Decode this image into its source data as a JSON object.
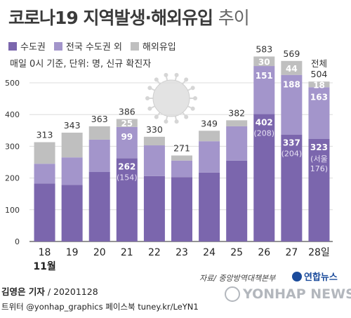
{
  "title_main": "코로나19 지역발생·해외유입",
  "title_suffix": "추이",
  "note": "매일 0시 기준, 단위: 명, 신규 확진자",
  "source": "자료/ 중앙방역대책본부",
  "byline_name": "김영은 기자",
  "byline_date": " / 20201128",
  "social": "트위터 @yonhap_graphics  페이스북 tuney.kr/LeYN1",
  "logo_text": "연합뉴스",
  "watermark_text": "YONHAP NEWS",
  "colors": {
    "domestic_capital": "#7b66ad",
    "domestic_other": "#a395cb",
    "imported": "#bfbfbf",
    "axis_text": "#333333"
  },
  "chart_data": {
    "type": "bar",
    "stacked": true,
    "categories": [
      "18",
      "19",
      "20",
      "21",
      "22",
      "23",
      "24",
      "25",
      "26",
      "27",
      "28일"
    ],
    "month_label": "11월",
    "series": [
      {
        "name": "수도권",
        "values": [
          183,
          178,
          219,
          262,
          206,
          203,
          217,
          255,
          402,
          337,
          323
        ]
      },
      {
        "name": "전국 수도권 외",
        "values": [
          62,
          87,
          102,
          99,
          97,
          52,
          99,
          108,
          151,
          188,
          163
        ]
      },
      {
        "name": "해외유입",
        "values": [
          68,
          78,
          42,
          25,
          27,
          16,
          33,
          19,
          30,
          44,
          18
        ]
      }
    ],
    "totals": [
      313,
      343,
      363,
      386,
      330,
      271,
      349,
      382,
      583,
      569,
      504
    ],
    "total_label": "전체",
    "segment_labels": {
      "capital": [
        "",
        "",
        "",
        "262",
        "",
        "",
        "",
        "",
        "402",
        "337",
        "323"
      ],
      "other": [
        "",
        "",
        "",
        "99",
        "",
        "",
        "",
        "",
        "151",
        "188",
        "163"
      ],
      "imported": [
        "",
        "",
        "",
        "25",
        "",
        "",
        "",
        "",
        "30",
        "44",
        "18"
      ]
    },
    "seoul_labels": [
      "",
      "",
      "",
      "(154)",
      "",
      "",
      "",
      "",
      "(208)",
      "(204)",
      "(서울 176)"
    ],
    "yticks": [
      0,
      100,
      200,
      300,
      400,
      500
    ],
    "ylim": [
      0,
      600
    ],
    "grid": true,
    "legend_position": "top-left"
  }
}
